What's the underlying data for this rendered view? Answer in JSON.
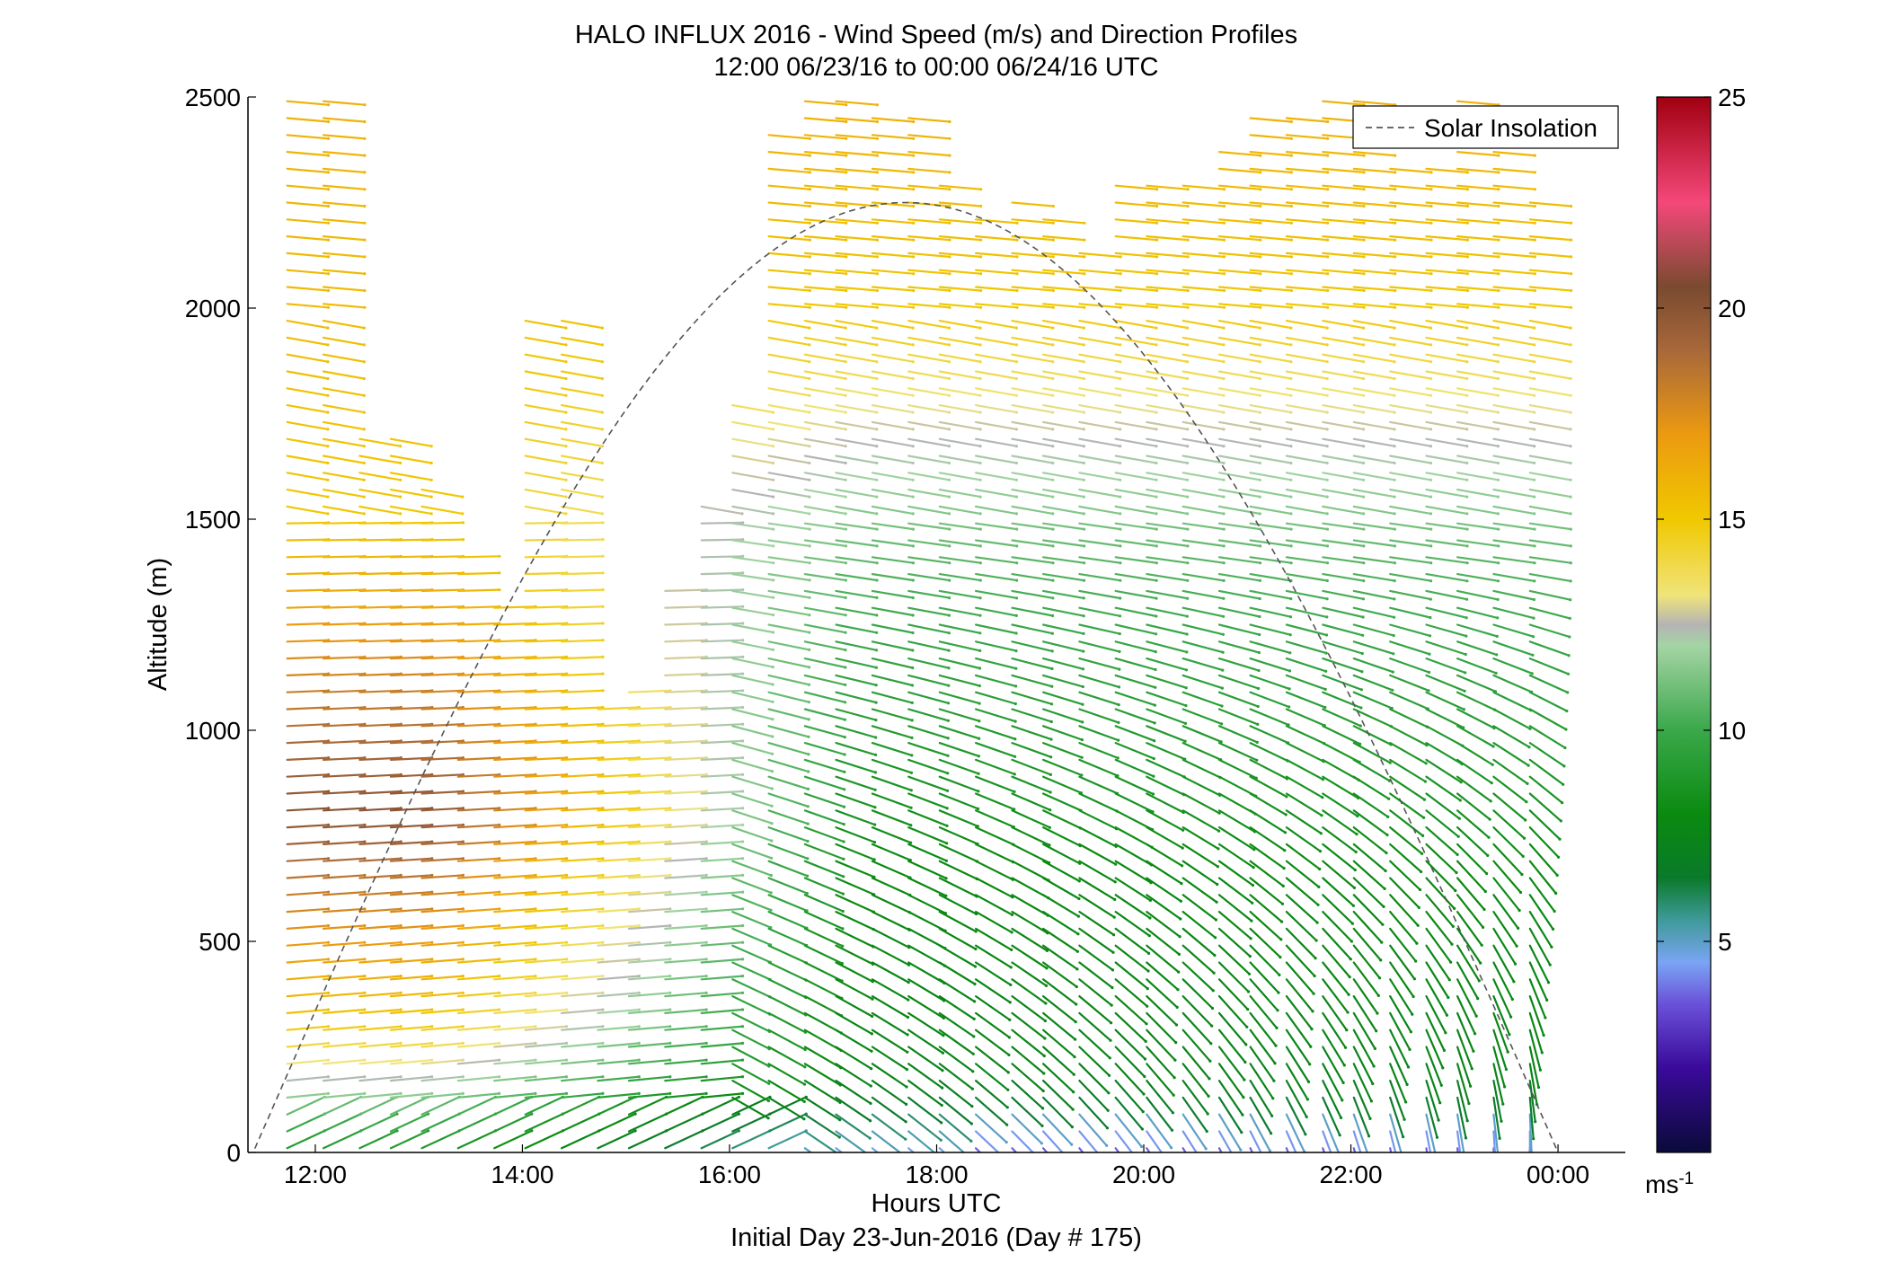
{
  "chart_data": {
    "type": "barbs",
    "title": "HALO INFLUX 2016 - Wind Speed (m/s) and Direction Profiles",
    "subtitle": "12:00 06/23/16 to 00:00 06/24/16  UTC",
    "xlabel": "Hours UTC",
    "xlabel2": "Initial Day 23-Jun-2016 (Day # 175)",
    "ylabel": "Altitude (m)",
    "xlim": [
      11.35,
      24.65
    ],
    "ylim": [
      0,
      2500
    ],
    "x_ticks": [
      12,
      14,
      16,
      18,
      20,
      22,
      24
    ],
    "x_tick_labels": [
      "12:00",
      "14:00",
      "16:00",
      "18:00",
      "20:00",
      "22:00",
      "00:00"
    ],
    "y_ticks": [
      0,
      500,
      1000,
      1500,
      2000,
      2500
    ],
    "y_tick_labels": [
      "0",
      "500",
      "1000",
      "1500",
      "2000",
      "2500"
    ],
    "legend": {
      "entries": [
        "Solar Insolation"
      ],
      "placement": "top-right"
    },
    "colorbar": {
      "range": [
        0,
        25
      ],
      "ticks": [
        5,
        10,
        15,
        20,
        25
      ],
      "tick_labels": [
        "5",
        "10",
        "15",
        "20",
        "25"
      ],
      "unit_label": "ms",
      "unit_exponent": "-1",
      "stops": [
        {
          "v": 0,
          "c": "#0a0a3a"
        },
        {
          "v": 2,
          "c": "#3a0a9a"
        },
        {
          "v": 3.5,
          "c": "#6a50d8"
        },
        {
          "v": 4.5,
          "c": "#7aa4f4"
        },
        {
          "v": 5.5,
          "c": "#3f9a9a"
        },
        {
          "v": 6.5,
          "c": "#0a7a2a"
        },
        {
          "v": 8,
          "c": "#0a8a10"
        },
        {
          "v": 10,
          "c": "#3aa84a"
        },
        {
          "v": 12,
          "c": "#a4d4a4"
        },
        {
          "v": 12.5,
          "c": "#b4b4b4"
        },
        {
          "v": 13.2,
          "c": "#f0e47a"
        },
        {
          "v": 15,
          "c": "#f0c800"
        },
        {
          "v": 17,
          "c": "#ec9a10"
        },
        {
          "v": 19,
          "c": "#a8683a"
        },
        {
          "v": 20.5,
          "c": "#7a4a30"
        },
        {
          "v": 22.5,
          "c": "#f4487a"
        },
        {
          "v": 25,
          "c": "#a00010"
        }
      ]
    },
    "solar_insolation": {
      "style": "dashed",
      "color": "#555555",
      "peak_hour": 17.7,
      "peak_altitude": 2250,
      "half_width_hours": 6.3,
      "floor_altitude": 0
    },
    "profiles": {
      "times": [
        11.85,
        12.2,
        12.55,
        12.85,
        13.15,
        13.5,
        13.85,
        14.15,
        14.5,
        14.85,
        15.15,
        15.5,
        15.85,
        16.15,
        16.5,
        16.85,
        17.15,
        17.5,
        17.85,
        18.15,
        18.5,
        18.85,
        19.15,
        19.5,
        19.85,
        20.15,
        20.5,
        20.85,
        21.15,
        21.5,
        21.85,
        22.15,
        22.5,
        22.85,
        23.15,
        23.5,
        23.85
      ],
      "max_altitude": [
        2500,
        2500,
        1720,
        1720,
        1600,
        1420,
        1290,
        2000,
        2000,
        1060,
        1090,
        1350,
        1550,
        1790,
        2420,
        2490,
        2490,
        2450,
        2450,
        2320,
        2230,
        2250,
        2240,
        2150,
        2320,
        2320,
        2320,
        2400,
        2450,
        2460,
        2490,
        2490,
        2350,
        2350,
        2490,
        2480,
        2270
      ],
      "altitude_step_m": 40,
      "lowest_altitude_m": 10,
      "speed_profile_ms": [
        {
          "alt": 0,
          "speed": 4.5
        },
        {
          "alt": 200,
          "speed": 7.5
        },
        {
          "alt": 700,
          "speed": 8
        },
        {
          "alt": 1000,
          "speed": 9
        },
        {
          "alt": 1400,
          "speed": 10.5
        },
        {
          "alt": 1700,
          "speed": 12.5
        },
        {
          "alt": 2000,
          "speed": 15
        },
        {
          "alt": 2500,
          "speed": 16
        }
      ],
      "early_speed_profile_ms": [
        {
          "alt": 0,
          "speed": 9
        },
        {
          "alt": 300,
          "speed": 15
        },
        {
          "alt": 800,
          "speed": 20
        },
        {
          "alt": 1100,
          "speed": 18
        },
        {
          "alt": 1500,
          "speed": 15
        },
        {
          "alt": 2500,
          "speed": 16
        }
      ]
    }
  }
}
